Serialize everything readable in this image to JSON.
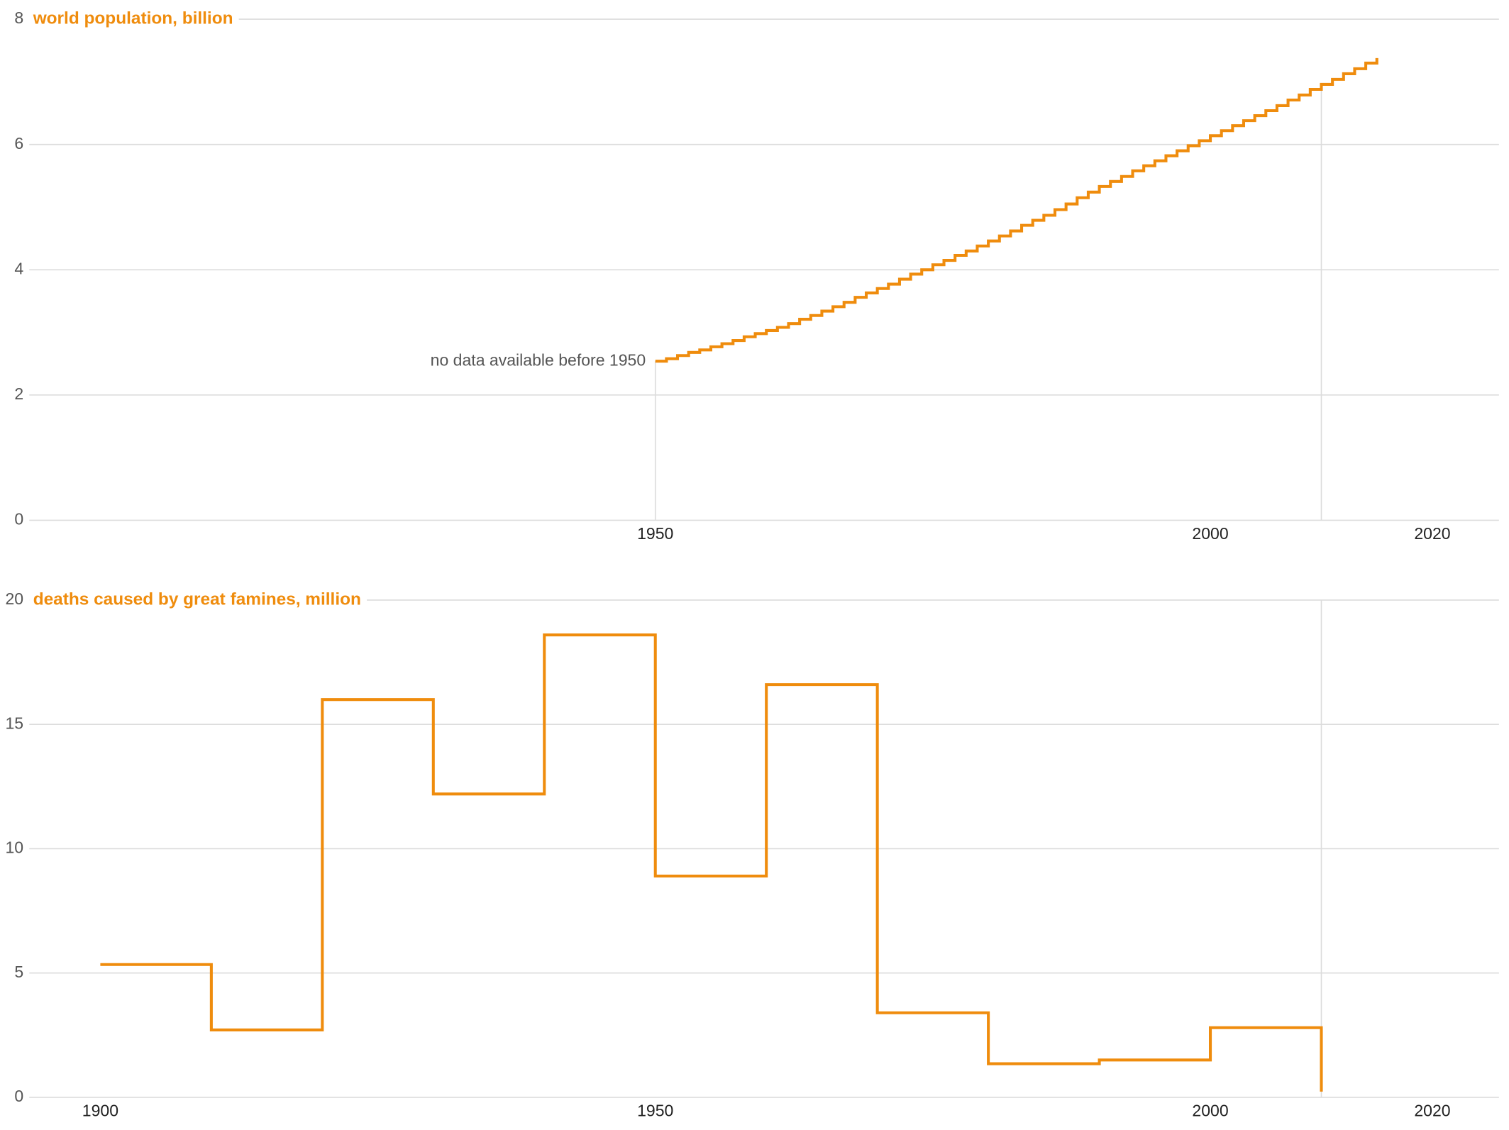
{
  "chart_data": [
    {
      "type": "step",
      "title": "world population, billion",
      "annotation": "no data available before 1950",
      "color": "#ef8c0d",
      "x": [
        1950,
        1951,
        1952,
        1953,
        1954,
        1955,
        1956,
        1957,
        1958,
        1959,
        1960,
        1961,
        1962,
        1963,
        1964,
        1965,
        1966,
        1967,
        1968,
        1969,
        1970,
        1971,
        1972,
        1973,
        1974,
        1975,
        1976,
        1977,
        1978,
        1979,
        1980,
        1981,
        1982,
        1983,
        1984,
        1985,
        1986,
        1987,
        1988,
        1989,
        1990,
        1991,
        1992,
        1993,
        1994,
        1995,
        1996,
        1997,
        1998,
        1999,
        2000,
        2001,
        2002,
        2003,
        2004,
        2005,
        2006,
        2007,
        2008,
        2009,
        2010,
        2011,
        2012,
        2013,
        2014,
        2015
      ],
      "values": [
        2.54,
        2.58,
        2.63,
        2.68,
        2.72,
        2.77,
        2.82,
        2.87,
        2.93,
        2.98,
        3.03,
        3.08,
        3.14,
        3.21,
        3.27,
        3.34,
        3.41,
        3.48,
        3.56,
        3.63,
        3.7,
        3.77,
        3.85,
        3.93,
        4.0,
        4.08,
        4.15,
        4.23,
        4.3,
        4.38,
        4.46,
        4.54,
        4.62,
        4.71,
        4.79,
        4.87,
        4.96,
        5.05,
        5.15,
        5.24,
        5.33,
        5.41,
        5.49,
        5.58,
        5.66,
        5.74,
        5.82,
        5.9,
        5.98,
        6.06,
        6.14,
        6.22,
        6.3,
        6.38,
        6.46,
        6.54,
        6.62,
        6.71,
        6.79,
        6.88,
        6.96,
        7.04,
        7.13,
        7.21,
        7.3,
        7.38
      ],
      "xlim": [
        1893.6,
        2026
      ],
      "xticks": [
        1950,
        2000,
        2020
      ],
      "vlines": [
        1950,
        2010
      ],
      "ylim": [
        0,
        8
      ],
      "yticks": [
        0,
        2,
        4,
        6,
        8
      ],
      "grid": true
    },
    {
      "type": "step",
      "title": "deaths caused by great famines, million",
      "color": "#ef8c0d",
      "x": [
        1900,
        1910,
        1920,
        1930,
        1940,
        1950,
        1960,
        1970,
        1980,
        1990,
        2000,
        2010
      ],
      "values": [
        5.34,
        2.71,
        16.0,
        12.2,
        18.6,
        8.9,
        16.6,
        3.4,
        1.35,
        1.5,
        2.8,
        0.23
      ],
      "xlim": [
        1893.6,
        2026
      ],
      "xticks": [
        1900,
        1950,
        2000,
        2020
      ],
      "vlines": [
        2010
      ],
      "ylim": [
        0,
        20
      ],
      "yticks": [
        0,
        5,
        10,
        15,
        20
      ],
      "grid": true
    }
  ]
}
